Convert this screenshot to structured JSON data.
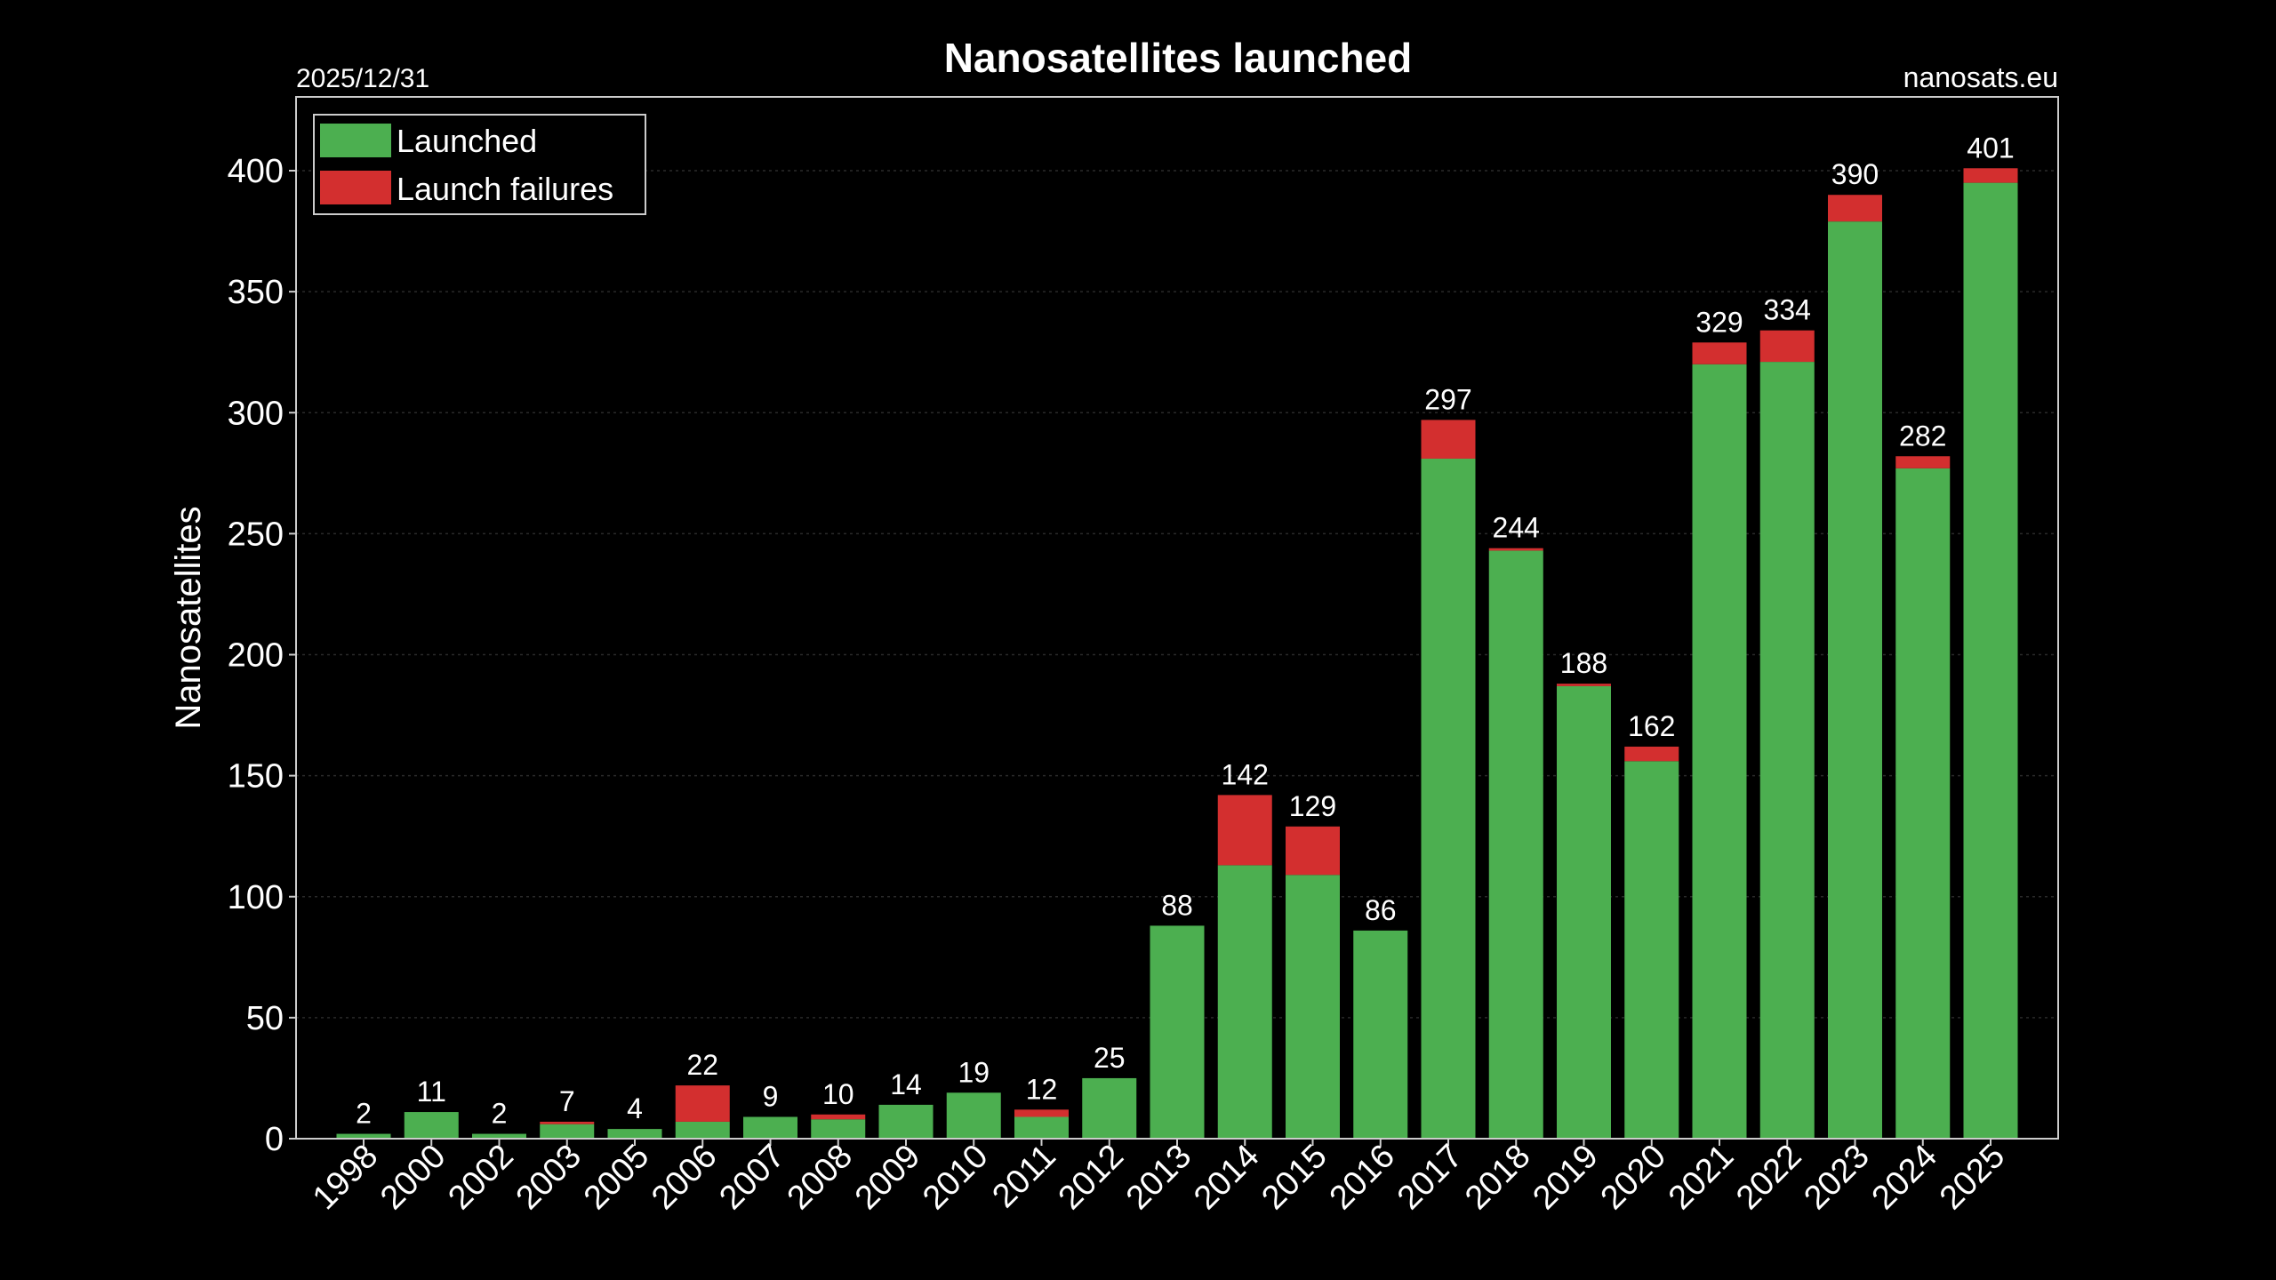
{
  "chart_data": {
    "type": "bar",
    "stacked": true,
    "title": "Nanosatellites launched",
    "date_label": "2025/12/31",
    "source_label": "nanosats.eu",
    "ylabel": "Nanosatellites",
    "xlabel": "",
    "ylim": [
      0,
      430
    ],
    "yticks": [
      0,
      50,
      100,
      150,
      200,
      250,
      300,
      350,
      400
    ],
    "grid": true,
    "legend_position": "top-left",
    "categories": [
      "1998",
      "2000",
      "2002",
      "2003",
      "2005",
      "2006",
      "2007",
      "2008",
      "2009",
      "2010",
      "2011",
      "2012",
      "2013",
      "2014",
      "2015",
      "2016",
      "2017",
      "2018",
      "2019",
      "2020",
      "2021",
      "2022",
      "2023",
      "2024",
      "2025"
    ],
    "series": [
      {
        "name": "Launched",
        "color": "#4caf50",
        "values": [
          2,
          11,
          2,
          6,
          4,
          7,
          9,
          8,
          14,
          19,
          9,
          25,
          88,
          113,
          109,
          86,
          281,
          243,
          187,
          156,
          320,
          321,
          379,
          277,
          395
        ]
      },
      {
        "name": "Launch failures",
        "color": "#d32f2f",
        "values": [
          0,
          0,
          0,
          1,
          0,
          15,
          0,
          2,
          0,
          0,
          3,
          0,
          0,
          29,
          20,
          0,
          16,
          1,
          1,
          6,
          9,
          13,
          11,
          5,
          6
        ]
      }
    ],
    "totals": [
      2,
      11,
      2,
      7,
      4,
      22,
      9,
      10,
      14,
      19,
      12,
      25,
      88,
      142,
      129,
      86,
      297,
      244,
      188,
      162,
      329,
      334,
      390,
      282,
      401
    ]
  }
}
